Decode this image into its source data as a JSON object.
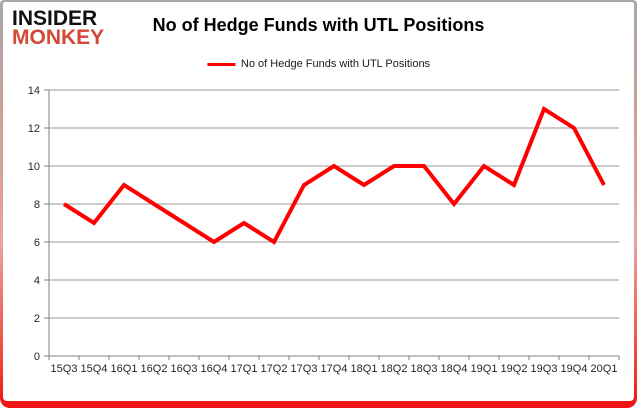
{
  "logo": {
    "line1": "INSIDER",
    "line2": "MONKEY"
  },
  "header": {
    "title": "No of Hedge Funds with UTL Positions"
  },
  "legend": {
    "label": "No of Hedge Funds with UTL Positions"
  },
  "colors": {
    "series_red": "#ff0000",
    "logo_red": "#d34836",
    "gridline": "#9a9a9a",
    "axis": "#808080",
    "tick_text": "#262626",
    "frame_bottom_red": "#ee1111"
  },
  "chart_data": {
    "type": "line",
    "title": "No of Hedge Funds with UTL Positions",
    "categories": [
      "15Q3",
      "15Q4",
      "16Q1",
      "16Q2",
      "16Q3",
      "16Q4",
      "17Q1",
      "17Q2",
      "17Q3",
      "17Q4",
      "18Q1",
      "18Q2",
      "18Q3",
      "18Q4",
      "19Q1",
      "19Q2",
      "19Q3",
      "19Q4",
      "20Q1"
    ],
    "series": [
      {
        "name": "No of Hedge Funds with UTL Positions",
        "color": "#ff0000",
        "values": [
          8,
          7,
          9,
          8,
          7,
          6,
          7,
          6,
          9,
          10,
          9,
          10,
          10,
          8,
          10,
          9,
          13,
          12,
          9
        ]
      }
    ],
    "xlabel": "",
    "ylabel": "",
    "ylim": [
      0,
      14
    ],
    "ytick_step": 2,
    "yticks": [
      0,
      2,
      4,
      6,
      8,
      10,
      12,
      14
    ],
    "grid": true,
    "legend_position": "top-center"
  }
}
